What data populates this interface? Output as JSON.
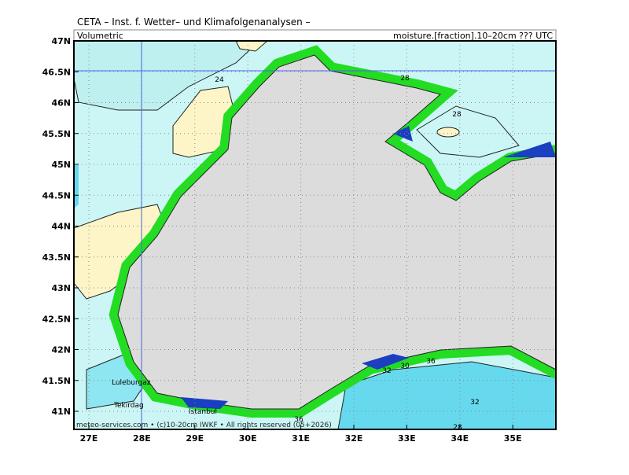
{
  "header": {
    "title": "CETA – Inst. f. Wetter– und Klimafolgenanalysen –",
    "left": "Volumetric",
    "right": "moisture.[fraction].10–20cm ??? UTC"
  },
  "map": {
    "lat_labels": [
      "47N",
      "46.5N",
      "46N",
      "45.5N",
      "45N",
      "44.5N",
      "44N",
      "43.5N",
      "43N",
      "42.5N",
      "42N",
      "41.5N",
      "41N"
    ],
    "lon_labels": [
      "27E",
      "28E",
      "29E",
      "30E",
      "31E",
      "32E",
      "33E",
      "34E",
      "35E"
    ],
    "contour_labels": [
      "24",
      "28",
      "28",
      "32",
      "30",
      "36",
      "32",
      "28",
      "36"
    ],
    "places": [
      "Luleburgaz",
      "Tekirdag",
      "Istanbul"
    ],
    "footer": "meteo-services.com • (c)10-20cm IWKF • All rights reserved (05+2026)"
  }
}
